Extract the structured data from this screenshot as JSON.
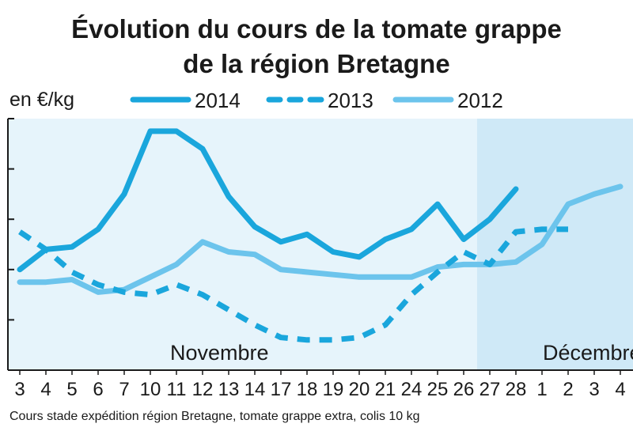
{
  "colors": {
    "series_2014": "#1aa6dc",
    "series_2013": "#1aa6dc",
    "series_2012": "#6cc4ec",
    "panel_november": "#e6f4fb",
    "panel_december": "#cfe9f7",
    "axis": "#1a1a1a"
  },
  "chart_data": {
    "type": "line",
    "title_line1": "Évolution du cours de la tomate grappe",
    "title_line2": "de la région Bretagne",
    "ylabel": "en €/kg",
    "ylim": [
      0,
      5
    ],
    "yticks": [
      1,
      2,
      3,
      4,
      5
    ],
    "y_tick_labels_shown": false,
    "months": [
      {
        "label": "Novembre",
        "start": 0,
        "end": 18
      },
      {
        "label": "Décembre",
        "start": 18,
        "end": 22
      }
    ],
    "categories": [
      "3",
      "4",
      "5",
      "6",
      "7",
      "10",
      "11",
      "12",
      "13",
      "14",
      "17",
      "18",
      "19",
      "20",
      "21",
      "24",
      "25",
      "26",
      "27",
      "28",
      "1",
      "2",
      "3",
      "4"
    ],
    "series": [
      {
        "name": "2014",
        "style": "solid",
        "values": [
          2.0,
          2.4,
          2.45,
          2.8,
          3.5,
          4.75,
          4.75,
          4.4,
          3.45,
          2.85,
          2.55,
          2.7,
          2.35,
          2.25,
          2.6,
          2.8,
          3.3,
          2.6,
          3.0,
          3.6,
          null,
          null,
          null,
          null
        ]
      },
      {
        "name": "2013",
        "style": "dashed",
        "values": [
          2.75,
          2.4,
          1.95,
          1.7,
          1.55,
          1.5,
          1.7,
          1.5,
          1.2,
          0.9,
          0.65,
          0.6,
          0.6,
          0.65,
          0.9,
          1.5,
          1.95,
          2.35,
          2.1,
          2.75,
          2.8,
          2.8,
          null,
          null
        ]
      },
      {
        "name": "2012",
        "style": "solid",
        "values": [
          1.75,
          1.75,
          1.8,
          1.55,
          1.6,
          1.85,
          2.1,
          2.55,
          2.35,
          2.3,
          2.0,
          1.95,
          1.9,
          1.85,
          1.85,
          1.85,
          2.05,
          2.1,
          2.1,
          2.15,
          2.5,
          3.3,
          3.5,
          3.65
        ]
      }
    ],
    "source": "Cours stade expédition région Bretagne, tomate grappe extra, colis 10 kg"
  }
}
